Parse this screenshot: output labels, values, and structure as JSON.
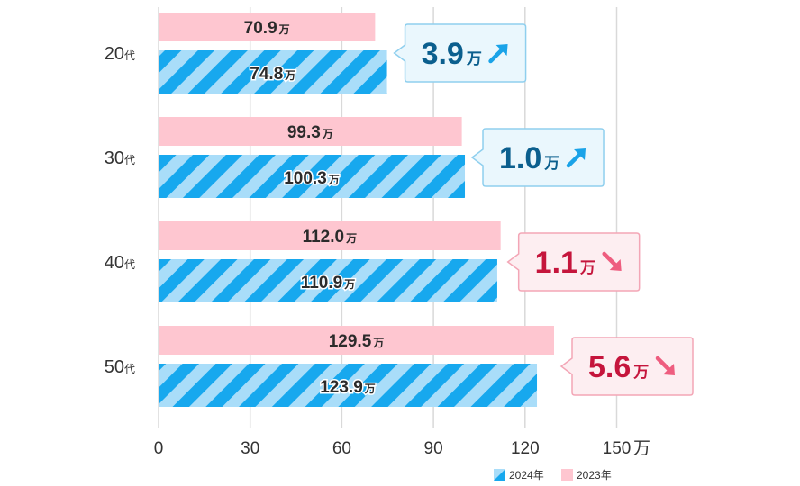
{
  "chart_data": {
    "type": "bar",
    "orientation": "horizontal",
    "categories": [
      "20代",
      "30代",
      "40代",
      "50代"
    ],
    "series": [
      {
        "name": "2023年",
        "color": "#fec6d0",
        "values": [
          70.9,
          99.3,
          112.0,
          129.5
        ]
      },
      {
        "name": "2024年",
        "color": "#17a8ee",
        "stripe_color": "#a9ddf9",
        "values": [
          74.8,
          100.3,
          110.9,
          123.9
        ]
      }
    ],
    "value_labels": {
      "2023年": [
        "70.9",
        "99.3",
        "112.0",
        "129.5"
      ],
      "2024年": [
        "74.8",
        "100.3",
        "110.9",
        "123.9"
      ]
    },
    "value_unit": "万",
    "differences": [
      {
        "value": "3.9",
        "unit": "万",
        "direction": "up"
      },
      {
        "value": "1.0",
        "unit": "万",
        "direction": "up"
      },
      {
        "value": "1.1",
        "unit": "万",
        "direction": "down"
      },
      {
        "value": "5.6",
        "unit": "万",
        "direction": "down"
      }
    ],
    "xlim": [
      0,
      150
    ],
    "xticks": [
      "0",
      "30",
      "60",
      "90",
      "120",
      "150"
    ],
    "xaxis_unit": "万",
    "legend": {
      "placement": "bottom-right",
      "order": [
        "2024年",
        "2023年"
      ]
    },
    "colors": {
      "up_text": "#0b5f8e",
      "up_box": "#eaf7fd",
      "up_border": "#8fcfee",
      "up_arrow": "#1aa3e8",
      "down_text": "#c5153c",
      "down_box": "#fdeef1",
      "down_border": "#f3a6b6",
      "down_arrow": "#ee5d7f"
    }
  }
}
